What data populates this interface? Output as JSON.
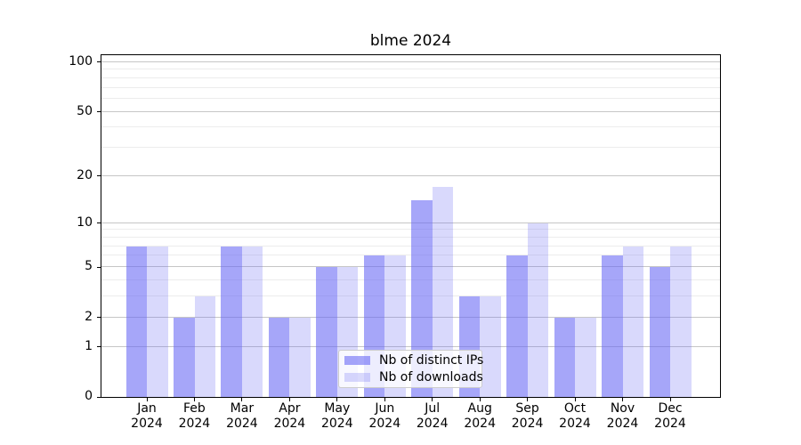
{
  "title": "blme 2024",
  "chart_data": {
    "type": "bar",
    "title": "blme 2024",
    "categories": [
      "Jan 2024",
      "Feb 2024",
      "Mar 2024",
      "Apr 2024",
      "May 2024",
      "Jun 2024",
      "Jul 2024",
      "Aug 2024",
      "Sep 2024",
      "Oct 2024",
      "Nov 2024",
      "Dec 2024"
    ],
    "series": [
      {
        "name": "Nb of distinct IPs",
        "color": "rgba(102,102,245,0.58)",
        "solid_color": "#a6a6f7",
        "values": [
          7,
          2,
          7,
          2,
          5,
          6,
          14,
          3,
          6,
          2,
          6,
          5
        ]
      },
      {
        "name": "Nb of downloads",
        "color": "rgba(102,102,245,0.25)",
        "solid_color": "#d9d9fb",
        "values": [
          7,
          3,
          7,
          2,
          5,
          6,
          17,
          3,
          10,
          2,
          7,
          7
        ]
      }
    ],
    "xlabel": "",
    "ylabel": "",
    "yscale": "log1p",
    "ylim": [
      0,
      112
    ],
    "y_major_ticks": [
      100,
      50,
      20,
      10,
      5,
      2,
      1,
      0
    ],
    "y_minor_ticks": [
      3,
      4,
      6,
      7,
      8,
      9,
      30,
      40,
      60,
      70,
      80,
      90
    ],
    "grid": true,
    "grid_major_color": "#c6c6c6",
    "grid_minor_color": "#ececec",
    "legend_position": "lower center"
  },
  "legend": {
    "items": [
      "Nb of distinct IPs",
      "Nb of downloads"
    ]
  }
}
